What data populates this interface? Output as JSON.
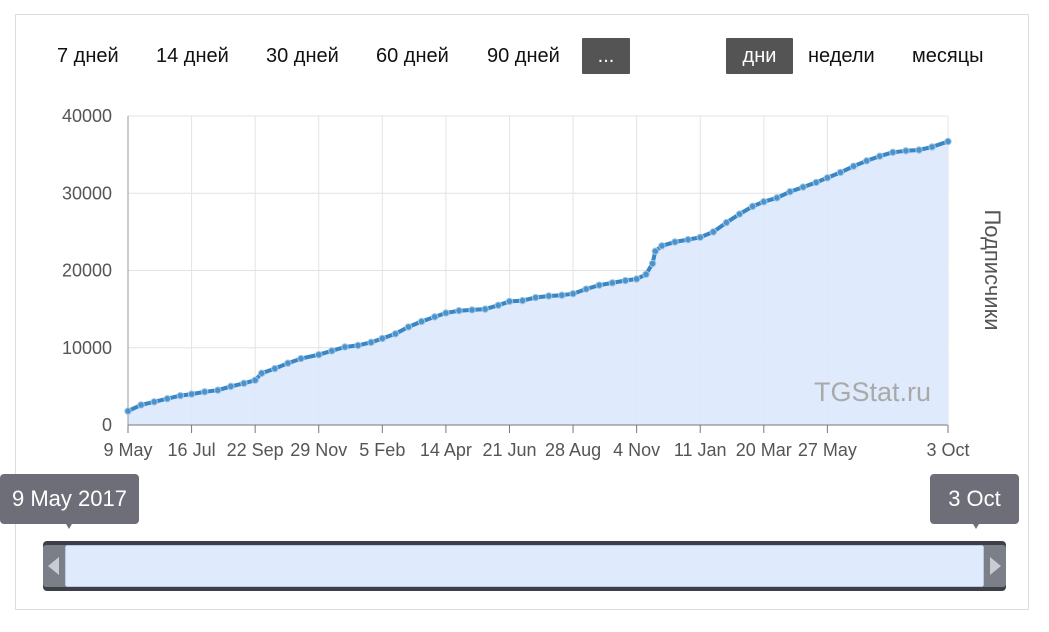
{
  "range_selector": {
    "periods": [
      "7 дней",
      "14 дней",
      "30 дней",
      "60 дней",
      "90 дней"
    ],
    "more_label": "...",
    "granularity": [
      {
        "label": "дни",
        "active": true
      },
      {
        "label": "недели",
        "active": false
      },
      {
        "label": "месяцы",
        "active": false
      }
    ]
  },
  "watermark": "TGStat.ru",
  "navigator": {
    "start_label": "9 May 2017",
    "end_label": "3 Oct"
  },
  "colors": {
    "line": "#3a86c3",
    "area": "#dbe9fc",
    "marker": "#4b93cd",
    "active_button": "#545454"
  },
  "chart_data": {
    "type": "area",
    "title": "",
    "xlabel": "",
    "ylabel": "Подписчики",
    "ylim": [
      0,
      40000
    ],
    "yticks": [
      0,
      10000,
      20000,
      30000,
      40000
    ],
    "xlim": [
      "2017-05-09",
      "2019-10-03"
    ],
    "xticks": [
      {
        "date": "2017-05-09",
        "label": "9 May"
      },
      {
        "date": "2017-07-16",
        "label": "16 Jul"
      },
      {
        "date": "2017-09-22",
        "label": "22 Sep"
      },
      {
        "date": "2017-11-29",
        "label": "29 Nov"
      },
      {
        "date": "2018-02-05",
        "label": "5 Feb"
      },
      {
        "date": "2018-04-14",
        "label": "14 Apr"
      },
      {
        "date": "2018-06-21",
        "label": "21 Jun"
      },
      {
        "date": "2018-08-28",
        "label": "28 Aug"
      },
      {
        "date": "2018-11-04",
        "label": "4 Nov"
      },
      {
        "date": "2019-01-11",
        "label": "11 Jan"
      },
      {
        "date": "2019-03-20",
        "label": "20 Mar"
      },
      {
        "date": "2019-05-27",
        "label": "27 May"
      },
      {
        "date": "2019-10-03",
        "label": "3 Oct"
      }
    ],
    "grid": true,
    "legend": "none",
    "series": [
      {
        "points": [
          [
            "2017-05-09",
            1800
          ],
          [
            "2017-05-23",
            2600
          ],
          [
            "2017-06-06",
            3000
          ],
          [
            "2017-06-20",
            3400
          ],
          [
            "2017-07-04",
            3800
          ],
          [
            "2017-07-16",
            4000
          ],
          [
            "2017-07-30",
            4300
          ],
          [
            "2017-08-13",
            4500
          ],
          [
            "2017-08-27",
            5000
          ],
          [
            "2017-09-10",
            5400
          ],
          [
            "2017-09-22",
            5800
          ],
          [
            "2017-09-29",
            6700
          ],
          [
            "2017-10-13",
            7300
          ],
          [
            "2017-10-27",
            8000
          ],
          [
            "2017-11-10",
            8600
          ],
          [
            "2017-11-29",
            9100
          ],
          [
            "2017-12-13",
            9600
          ],
          [
            "2017-12-27",
            10100
          ],
          [
            "2018-01-10",
            10300
          ],
          [
            "2018-01-24",
            10700
          ],
          [
            "2018-02-05",
            11200
          ],
          [
            "2018-02-19",
            11800
          ],
          [
            "2018-03-05",
            12700
          ],
          [
            "2018-03-19",
            13400
          ],
          [
            "2018-04-02",
            14000
          ],
          [
            "2018-04-14",
            14500
          ],
          [
            "2018-04-28",
            14800
          ],
          [
            "2018-05-12",
            14900
          ],
          [
            "2018-05-26",
            15000
          ],
          [
            "2018-06-09",
            15500
          ],
          [
            "2018-06-21",
            16000
          ],
          [
            "2018-07-05",
            16100
          ],
          [
            "2018-07-19",
            16500
          ],
          [
            "2018-08-02",
            16700
          ],
          [
            "2018-08-16",
            16800
          ],
          [
            "2018-08-28",
            17000
          ],
          [
            "2018-09-11",
            17600
          ],
          [
            "2018-09-25",
            18100
          ],
          [
            "2018-10-09",
            18400
          ],
          [
            "2018-10-23",
            18700
          ],
          [
            "2018-11-04",
            18900
          ],
          [
            "2018-11-14",
            19500
          ],
          [
            "2018-11-21",
            20900
          ],
          [
            "2018-11-24",
            22500
          ],
          [
            "2018-12-01",
            23200
          ],
          [
            "2018-12-15",
            23700
          ],
          [
            "2018-12-29",
            24000
          ],
          [
            "2019-01-11",
            24300
          ],
          [
            "2019-01-25",
            25000
          ],
          [
            "2019-02-08",
            26200
          ],
          [
            "2019-02-22",
            27300
          ],
          [
            "2019-03-08",
            28300
          ],
          [
            "2019-03-20",
            28900
          ],
          [
            "2019-04-03",
            29400
          ],
          [
            "2019-04-17",
            30200
          ],
          [
            "2019-05-01",
            30800
          ],
          [
            "2019-05-15",
            31400
          ],
          [
            "2019-05-27",
            32000
          ],
          [
            "2019-06-10",
            32700
          ],
          [
            "2019-06-24",
            33500
          ],
          [
            "2019-07-08",
            34200
          ],
          [
            "2019-07-22",
            34800
          ],
          [
            "2019-08-05",
            35300
          ],
          [
            "2019-08-19",
            35500
          ],
          [
            "2019-09-02",
            35600
          ],
          [
            "2019-09-16",
            36000
          ],
          [
            "2019-10-03",
            36700
          ]
        ]
      }
    ]
  }
}
